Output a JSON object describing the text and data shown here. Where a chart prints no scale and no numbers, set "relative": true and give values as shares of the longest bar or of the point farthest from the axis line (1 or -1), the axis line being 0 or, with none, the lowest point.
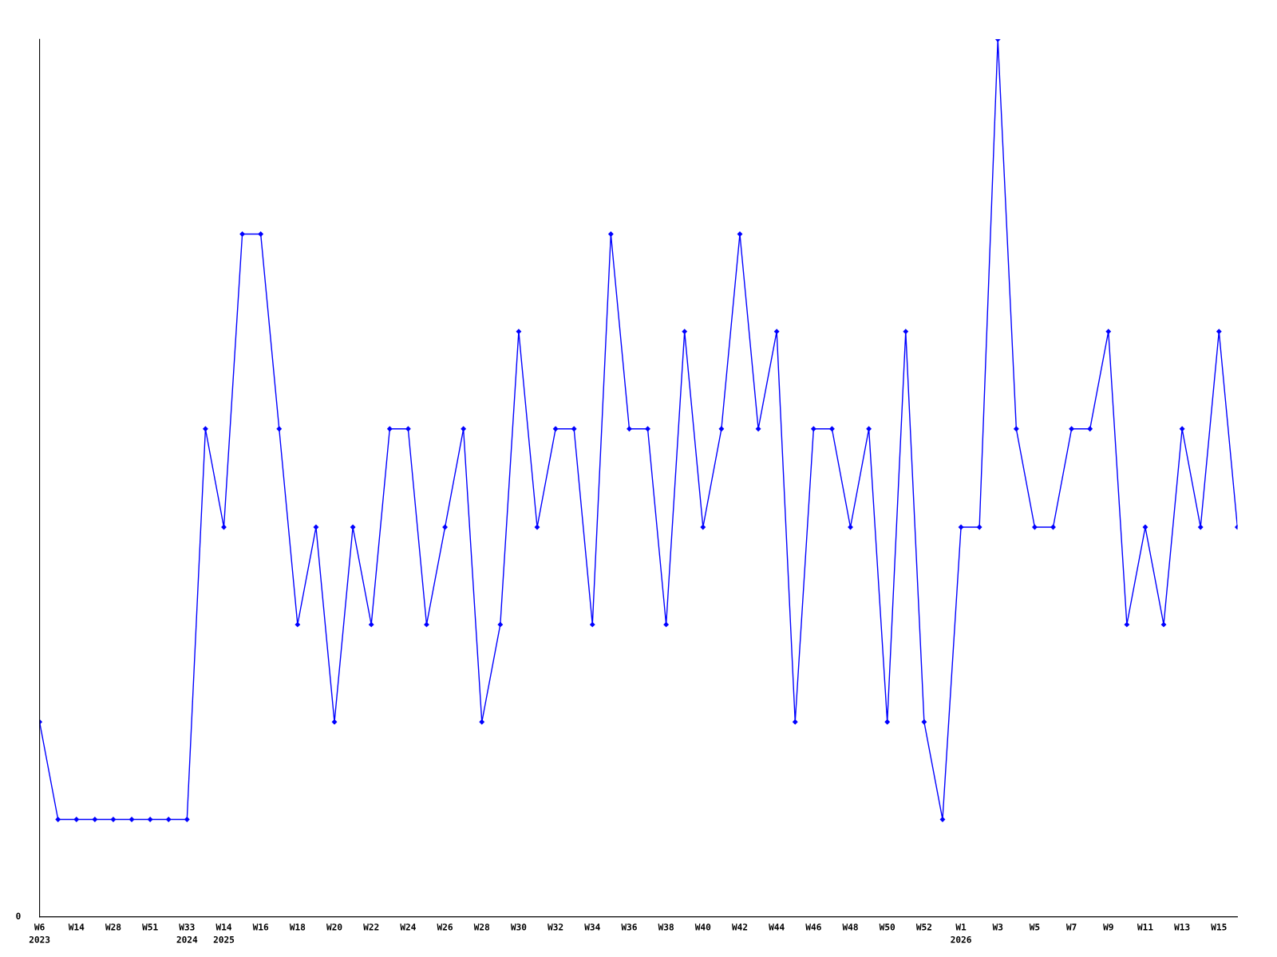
{
  "chart_data": {
    "type": "line",
    "relative": true,
    "categories": [
      "W6\n2023",
      null,
      "W14",
      null,
      "W28",
      null,
      "W51",
      null,
      "W33\n2024",
      null,
      "W14\n2025",
      null,
      "W16",
      null,
      "W18",
      null,
      "W20",
      null,
      "W22",
      null,
      "W24",
      null,
      "W26",
      null,
      "W28",
      null,
      "W30",
      null,
      "W32",
      null,
      "W34",
      null,
      "W36",
      null,
      "W38",
      null,
      "W40",
      null,
      "W42",
      null,
      "W44",
      null,
      "W46",
      null,
      "W48",
      null,
      "W50",
      null,
      "W52",
      null,
      "W1\n2026",
      null,
      "W3",
      null,
      "W5",
      null,
      "W7",
      null,
      "W9",
      null,
      "W11",
      null,
      "W13",
      null,
      "W15",
      null
    ],
    "series": [
      {
        "color": "#0000ff",
        "values": [
          0.222,
          0.111,
          0.111,
          0.111,
          0.111,
          0.111,
          0.111,
          0.111,
          0.111,
          0.556,
          0.444,
          0.778,
          0.778,
          0.556,
          0.333,
          0.444,
          0.222,
          0.444,
          0.333,
          0.556,
          0.556,
          0.333,
          0.444,
          0.556,
          0.222,
          0.333,
          0.667,
          0.444,
          0.556,
          0.556,
          0.333,
          0.778,
          0.556,
          0.556,
          0.333,
          0.667,
          0.444,
          0.556,
          0.778,
          0.556,
          0.667,
          0.222,
          0.556,
          0.556,
          0.444,
          0.556,
          0.222,
          0.667,
          0.222,
          0.111,
          0.444,
          0.444,
          1,
          0.556,
          0.444,
          0.444,
          0.556,
          0.556,
          0.667,
          0.333,
          0.444,
          0.333,
          0.556,
          0.444,
          0.667,
          0.444
        ]
      }
    ],
    "annotations": [
      "0"
    ],
    "marker": "diamond",
    "grid": false,
    "legend": false
  }
}
